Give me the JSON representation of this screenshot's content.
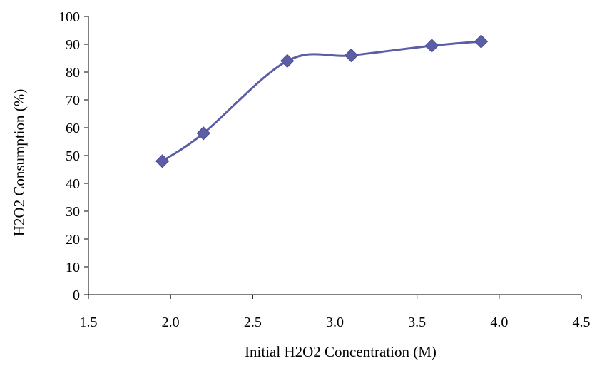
{
  "chart_data": {
    "type": "scatter",
    "title": "",
    "xlabel": "Initial H2O2 Concentration (M)",
    "ylabel": "H2O2 Consumption (%)",
    "xlim": [
      1.5,
      4.5
    ],
    "ylim": [
      0,
      100
    ],
    "xticks": [
      "1.5",
      "2.0",
      "2.5",
      "3.0",
      "3.5",
      "4.0",
      "4.5"
    ],
    "yticks": [
      "0",
      "10",
      "20",
      "30",
      "40",
      "50",
      "60",
      "70",
      "80",
      "90",
      "100"
    ],
    "grid": false,
    "legend": "none",
    "line_style": "smoothed line with diamond markers",
    "colors": {
      "series": "#5b5ea6",
      "axis": "#000000"
    },
    "series": [
      {
        "x": [
          1.95,
          2.2,
          2.71,
          3.1,
          3.59,
          3.89
        ],
        "y": [
          48,
          58,
          84,
          86,
          89.5,
          91
        ]
      }
    ]
  }
}
